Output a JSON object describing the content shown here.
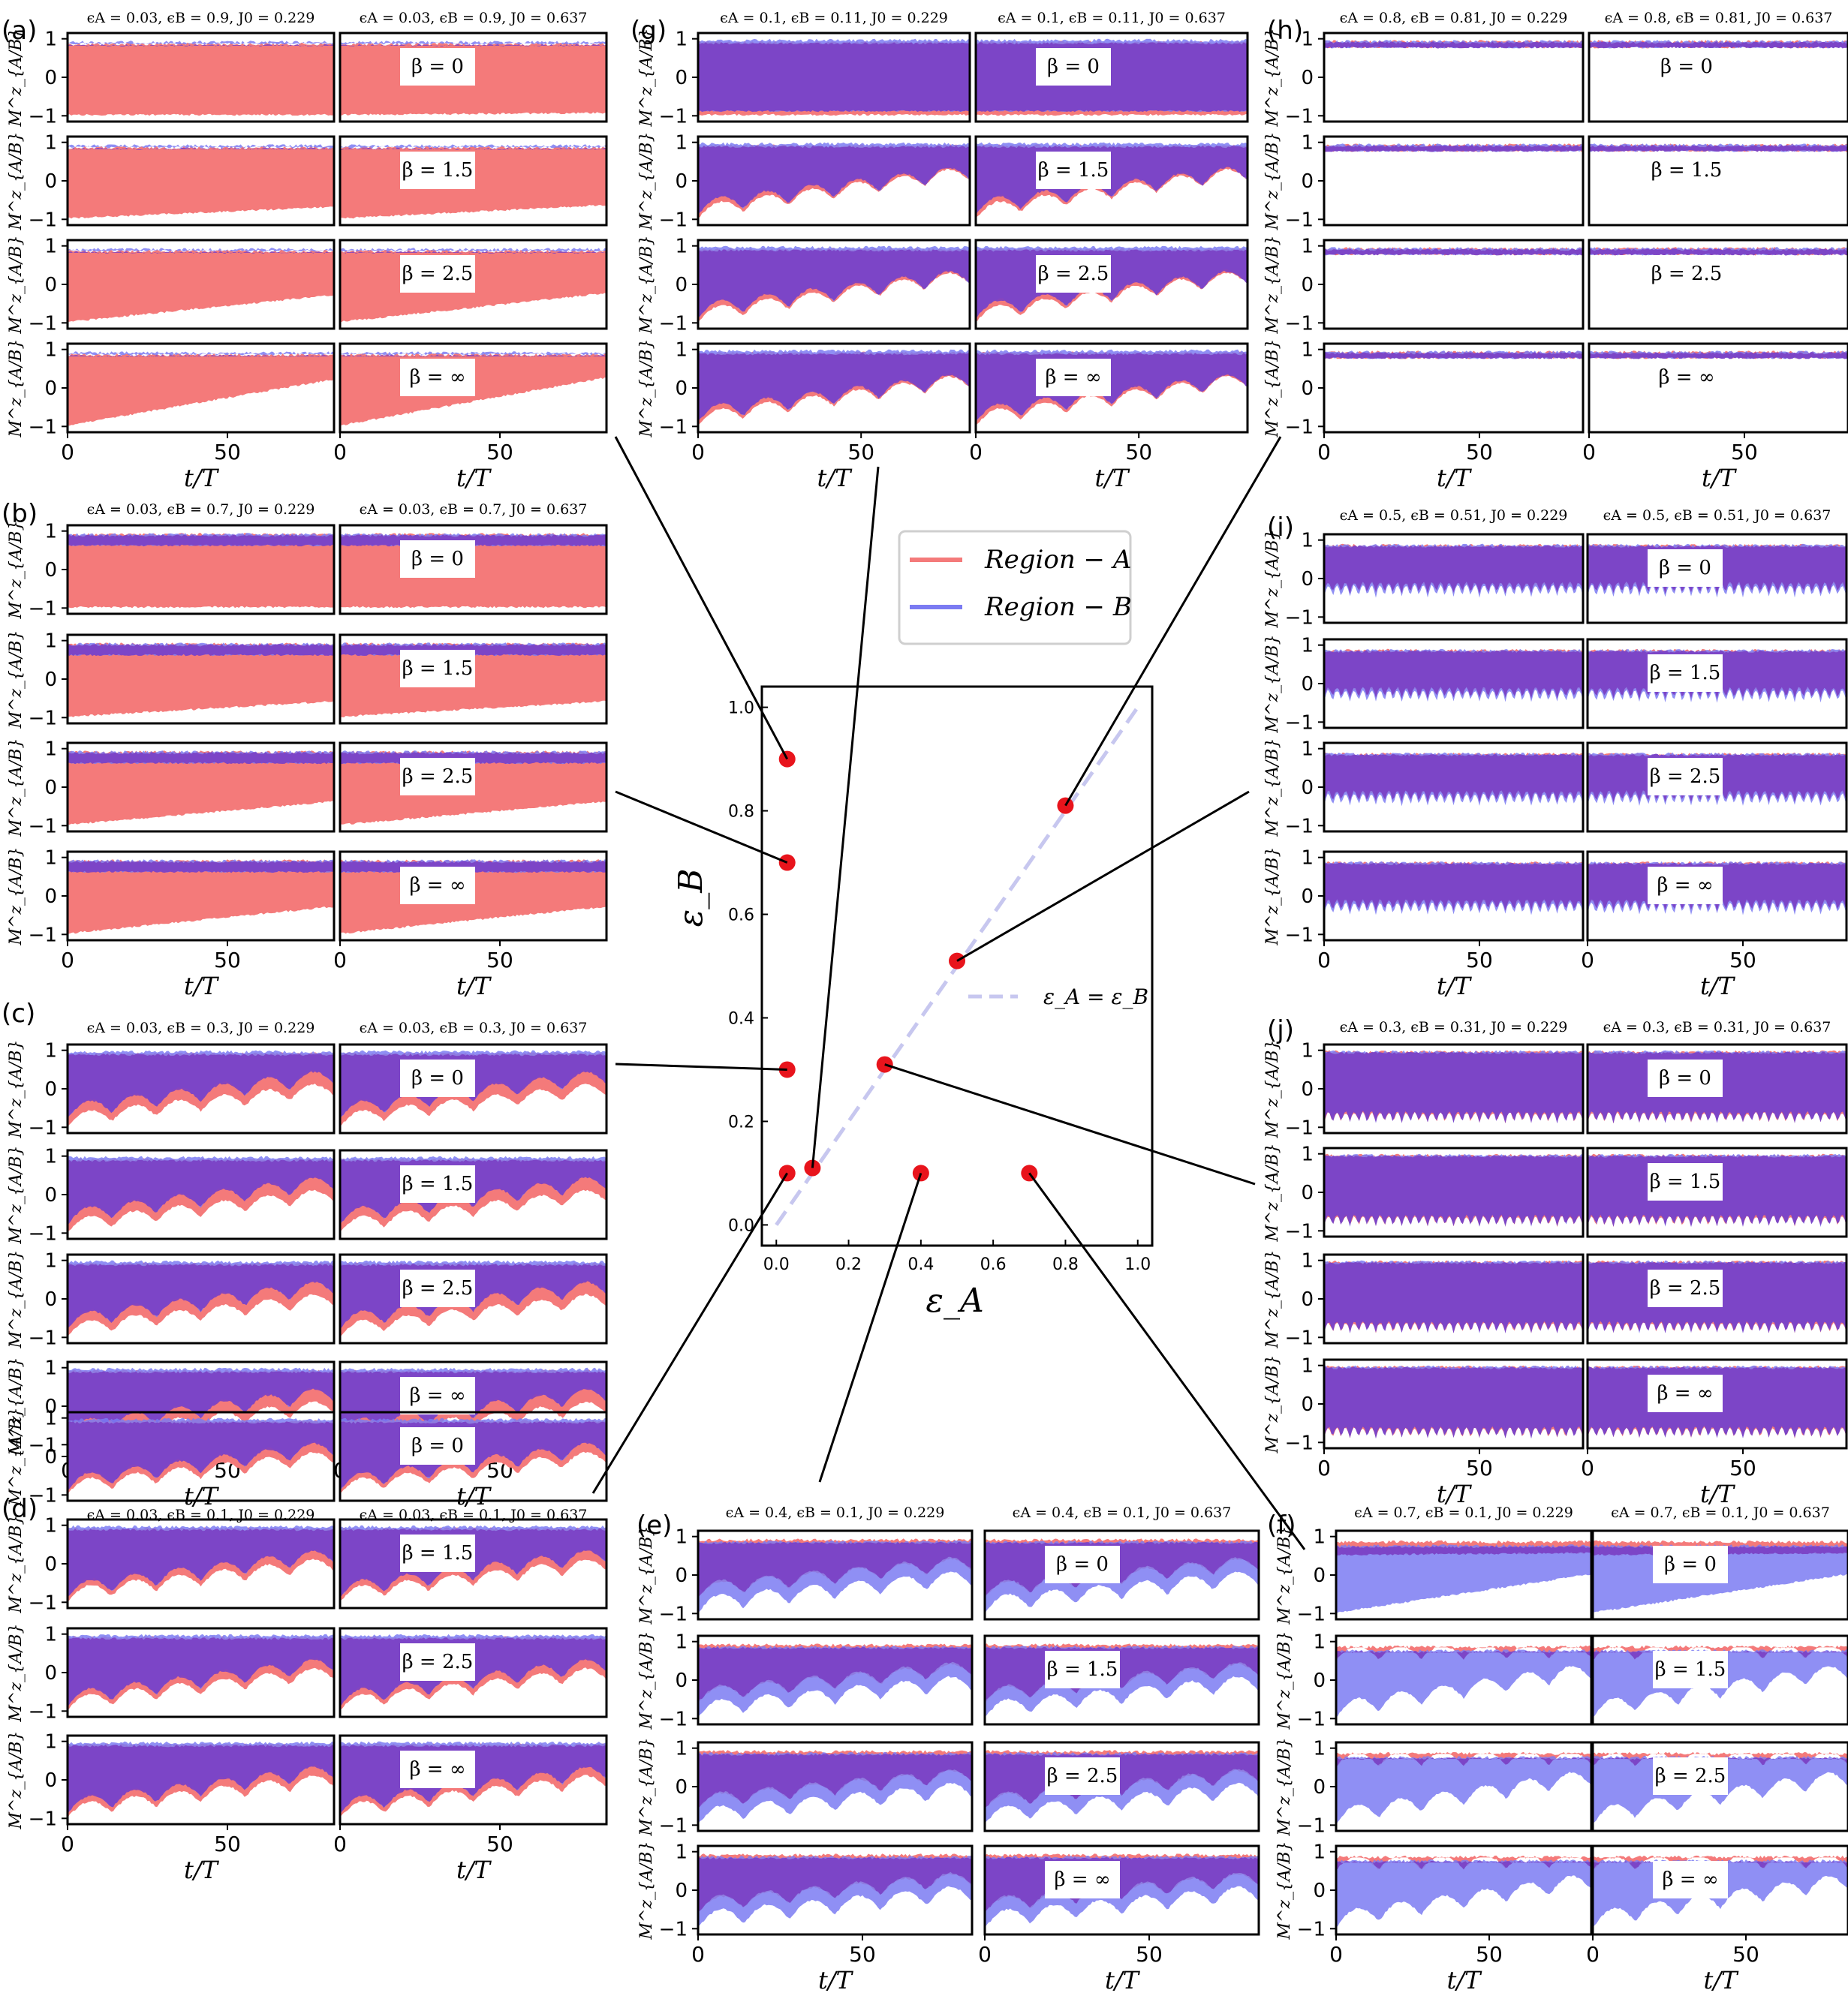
{
  "figure": {
    "y_axis_label": "M^z_{A/B}",
    "x_axis_label": "t/T",
    "x_ticks": [
      "0",
      "50"
    ],
    "y_ticks": [
      "1",
      "0",
      "−1"
    ],
    "beta_labels": [
      "β = 0",
      "β = 1.5",
      "β = 2.5",
      "β = ∞"
    ],
    "colors": {
      "region_a": "#f47a7a",
      "region_b": "#7b7bf2",
      "overlap": "#7a3fc4",
      "marker": "#e8141c",
      "diagonal": "#c7c7ef"
    }
  },
  "chart_data": {
    "type": "scatter",
    "title": "",
    "xlabel": "ε_A",
    "ylabel": "ε_B",
    "xlim": [
      -0.04,
      1.04
    ],
    "ylim": [
      -0.04,
      1.04
    ],
    "x_ticks": [
      "0.0",
      "0.2",
      "0.4",
      "0.6",
      "0.8",
      "1.0"
    ],
    "y_ticks": [
      "0.0",
      "0.2",
      "0.4",
      "0.6",
      "0.8",
      "1.0"
    ],
    "legend": {
      "placement": "top-left, outside main axes",
      "entries": [
        "Region − A",
        "Region − B"
      ]
    },
    "diagonal_label": "ε_A = ε_B",
    "points": [
      {
        "panel": "a",
        "x": 0.03,
        "y": 0.9
      },
      {
        "panel": "b",
        "x": 0.03,
        "y": 0.7
      },
      {
        "panel": "c",
        "x": 0.03,
        "y": 0.3
      },
      {
        "panel": "d",
        "x": 0.03,
        "y": 0.1
      },
      {
        "panel": "g",
        "x": 0.1,
        "y": 0.11
      },
      {
        "panel": "j",
        "x": 0.3,
        "y": 0.31
      },
      {
        "panel": "e",
        "x": 0.4,
        "y": 0.1
      },
      {
        "panel": "i",
        "x": 0.5,
        "y": 0.51
      },
      {
        "panel": "f",
        "x": 0.7,
        "y": 0.1
      },
      {
        "panel": "h",
        "x": 0.8,
        "y": 0.81
      }
    ],
    "panels": [
      {
        "id": "a",
        "letter": "(a)",
        "titles": [
          "ϵA = 0.03, ϵB = 0.9, J0 = 0.229",
          "ϵA = 0.03, ϵB = 0.9, J0 = 0.637"
        ]
      },
      {
        "id": "b",
        "letter": "(b)",
        "titles": [
          "ϵA = 0.03, ϵB = 0.7, J0 = 0.229",
          "ϵA = 0.03, ϵB = 0.7, J0 = 0.637"
        ]
      },
      {
        "id": "c",
        "letter": "(c)",
        "titles": [
          "ϵA = 0.03, ϵB = 0.3, J0 = 0.229",
          "ϵA = 0.03, ϵB = 0.3, J0 = 0.637"
        ]
      },
      {
        "id": "d",
        "letter": "(d)",
        "titles": [
          "ϵA = 0.03, ϵB = 0.1, J0 = 0.229",
          "ϵA = 0.03, ϵB = 0.1, J0 = 0.637"
        ]
      },
      {
        "id": "e",
        "letter": "(e)",
        "titles": [
          "ϵA = 0.4, ϵB = 0.1, J0 = 0.229",
          "ϵA = 0.4, ϵB = 0.1, J0 = 0.637"
        ]
      },
      {
        "id": "f",
        "letter": "(f)",
        "titles": [
          "ϵA = 0.7, ϵB = 0.1, J0 = 0.229",
          "ϵA = 0.7, ϵB = 0.1, J0 = 0.637"
        ]
      },
      {
        "id": "g",
        "letter": "(g)",
        "titles": [
          "ϵA = 0.1, ϵB = 0.11, J0 = 0.229",
          "ϵA = 0.1, ϵB = 0.11, J0 = 0.637"
        ]
      },
      {
        "id": "h",
        "letter": "(h)",
        "titles": [
          "ϵA = 0.8, ϵB = 0.81, J0 = 0.229",
          "ϵA = 0.8, ϵB = 0.81, J0 = 0.637"
        ]
      },
      {
        "id": "i",
        "letter": "(i)",
        "titles": [
          "ϵA = 0.5, ϵB = 0.51, J0 = 0.229",
          "ϵA = 0.5, ϵB = 0.51, J0 = 0.637"
        ]
      },
      {
        "id": "j",
        "letter": "(j)",
        "titles": [
          "ϵA = 0.3, ϵB = 0.31, J0 = 0.229",
          "ϵA = 0.3, ϵB = 0.31, J0 = 0.637"
        ]
      }
    ]
  }
}
